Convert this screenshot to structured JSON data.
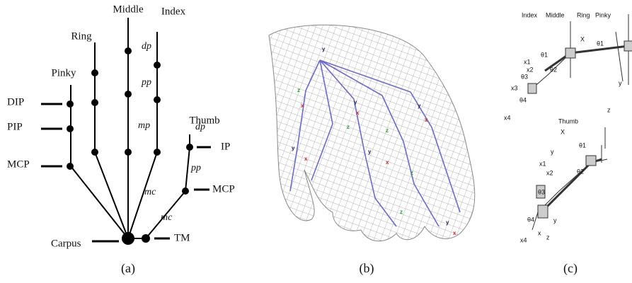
{
  "panel_a": {
    "fingers": [
      "Middle",
      "Ring",
      "Index",
      "Pinky",
      "Thumb"
    ],
    "joints": [
      "DIP",
      "PIP",
      "MCP",
      "Carpus",
      "TM",
      "IP",
      "MCP"
    ],
    "segments": [
      "dp",
      "pp",
      "mp",
      "dp",
      "pp",
      "mc",
      "mc"
    ]
  },
  "panel_b": {
    "axis_labels": [
      "y",
      "x",
      "z",
      "y",
      "x",
      "z",
      "y",
      "x",
      "z",
      "y",
      "x",
      "z",
      "y",
      "x",
      "z",
      "y",
      "x"
    ]
  },
  "panel_c": {
    "fingers": [
      "Index",
      "Middle",
      "Ring",
      "Pinky"
    ],
    "top_labels": [
      "X",
      "θ1",
      "θ1",
      "θ2",
      "x1",
      "x2",
      "θ3",
      "x3",
      "θ4",
      "x4",
      "y"
    ],
    "thumb_title": "Thumb",
    "bottom_labels": [
      "z",
      "X",
      "θ1",
      "y",
      "x1",
      "x2",
      "θ2",
      "θ3",
      "θ4",
      "x4",
      "y",
      "z",
      "x"
    ]
  },
  "captions": [
    "(a)",
    "(b)",
    "(c)"
  ]
}
